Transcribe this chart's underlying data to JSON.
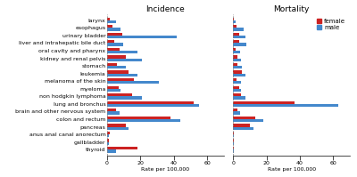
{
  "categories": [
    "larynx",
    "esophagus",
    "urinary bladder",
    "liver and intrahepatic bile duct",
    "oral cavity and pharynx",
    "kidney and renal pelvis",
    "stomach",
    "leukemia",
    "melanoma of the skin",
    "myeloma",
    "non hodgkin lymphoma",
    "lung and bronchus",
    "brain and other nervous system",
    "colon and rectum",
    "pancreas",
    "anus anal canal anorectum",
    "gallbladder",
    "thyroid"
  ],
  "incidence_female": [
    1.5,
    3.0,
    9.0,
    4.5,
    7.5,
    11.0,
    6.0,
    13.0,
    16.0,
    7.0,
    15.0,
    52.0,
    5.5,
    38.0,
    11.0,
    1.5,
    1.2,
    18.0
  ],
  "incidence_male": [
    5.5,
    8.0,
    42.0,
    9.5,
    18.0,
    21.0,
    11.0,
    18.0,
    31.0,
    8.0,
    21.0,
    55.0,
    7.5,
    44.0,
    13.0,
    1.2,
    1.2,
    5.5
  ],
  "mortality_female": [
    0.4,
    2.0,
    3.5,
    3.5,
    1.5,
    2.5,
    2.5,
    5.0,
    2.0,
    3.5,
    4.5,
    37.0,
    2.5,
    13.0,
    10.0,
    0.4,
    0.6,
    0.4
  ],
  "mortality_male": [
    1.5,
    6.5,
    7.5,
    8.0,
    4.0,
    4.5,
    5.0,
    7.5,
    4.5,
    4.5,
    7.5,
    63.0,
    4.0,
    18.0,
    12.0,
    0.4,
    0.4,
    0.4
  ],
  "female_color": "#cc2222",
  "male_color": "#4488cc",
  "incidence_xlim": [
    0,
    70
  ],
  "mortality_xlim": [
    0,
    70
  ],
  "title_incidence": "Incidence",
  "title_mortality": "Mortality",
  "xlabel": "Rate per 100,000",
  "bar_height": 0.38,
  "title_fontsize": 6.5,
  "label_fontsize": 4.5,
  "tick_fontsize": 4.5,
  "legend_fontsize": 5.0
}
